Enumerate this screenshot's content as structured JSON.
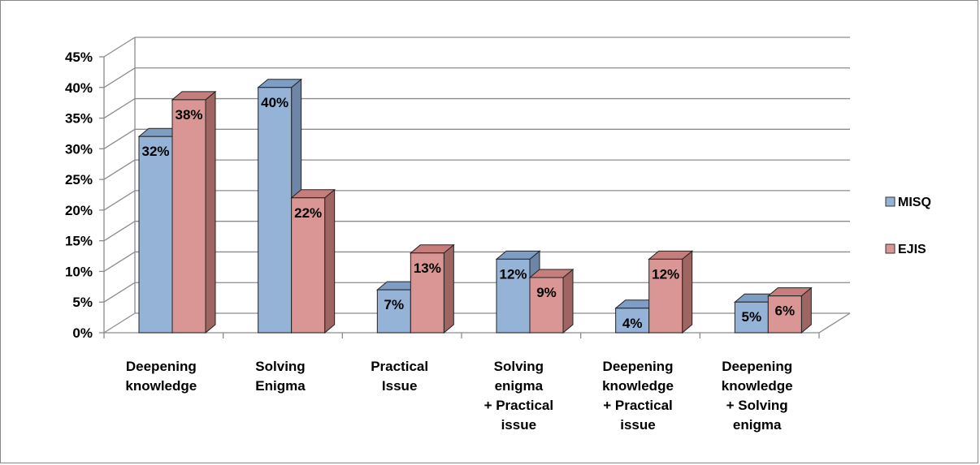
{
  "chart_data": {
    "type": "bar",
    "title": "",
    "xlabel": "",
    "ylabel": "",
    "ylim": [
      0,
      45
    ],
    "y_ticks": [
      "0%",
      "5%",
      "10%",
      "15%",
      "20%",
      "25%",
      "30%",
      "35%",
      "40%",
      "45%"
    ],
    "grid": true,
    "three_d": true,
    "legend_position": "right",
    "categories": [
      [
        "Deepening",
        "knowledge"
      ],
      [
        "Solving",
        "Enigma"
      ],
      [
        "Practical",
        "Issue"
      ],
      [
        "Solving",
        "enigma",
        "+ Practical",
        "issue"
      ],
      [
        "Deepening",
        "knowledge",
        "+ Practical",
        "issue"
      ],
      [
        "Deepening",
        "knowledge",
        "+ Solving",
        "enigma"
      ]
    ],
    "series": [
      {
        "name": "MISQ",
        "color": "#95b3d7",
        "side_color": "#6d86a8",
        "top_color": "#7f9cc2",
        "values": [
          32,
          40,
          7,
          12,
          4,
          5
        ],
        "labels": [
          "32%",
          "40%",
          "7%",
          "12%",
          "4%",
          "5%"
        ]
      },
      {
        "name": "EJIS",
        "color": "#da9694",
        "side_color": "#9e6563",
        "top_color": "#c67e7c",
        "values": [
          38,
          22,
          13,
          9,
          12,
          6
        ],
        "labels": [
          "38%",
          "22%",
          "13%",
          "9%",
          "12%",
          "6%"
        ]
      }
    ]
  }
}
